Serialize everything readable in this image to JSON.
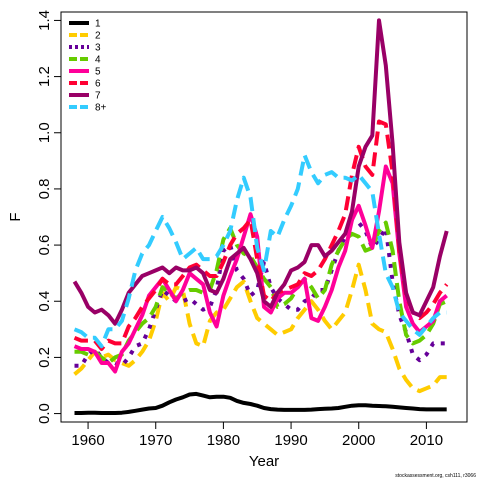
{
  "chart_data": {
    "type": "line",
    "title": "",
    "xlabel": "Year",
    "ylabel": "F",
    "credit": "stockassessment.org, csh111, r3066",
    "xlim": [
      1956,
      2016
    ],
    "ylim": [
      -0.03,
      1.43
    ],
    "x_ticks": [
      1960,
      1970,
      1980,
      1990,
      2000,
      2010
    ],
    "x_tick_labels": [
      "1960",
      "1970",
      "1980",
      "1990",
      "2000",
      "2010"
    ],
    "y_ticks": [
      0,
      0.2,
      0.4,
      0.6,
      0.8,
      1.0,
      1.2,
      1.4
    ],
    "y_tick_labels": [
      "0.0",
      "0.2",
      "0.4",
      "0.6",
      "0.8",
      "1.0",
      "1.2",
      "1.4"
    ],
    "grid": false,
    "legend_position": "top-left",
    "x": [
      1958,
      1959,
      1960,
      1961,
      1962,
      1963,
      1964,
      1965,
      1966,
      1967,
      1968,
      1969,
      1970,
      1971,
      1972,
      1973,
      1974,
      1975,
      1976,
      1977,
      1978,
      1979,
      1980,
      1981,
      1982,
      1983,
      1984,
      1985,
      1986,
      1987,
      1988,
      1989,
      1990,
      1991,
      1992,
      1993,
      1994,
      1995,
      1996,
      1997,
      1998,
      1999,
      2000,
      2001,
      2002,
      2003,
      2004,
      2005,
      2006,
      2007,
      2008,
      2009,
      2010,
      2011,
      2012,
      2013
    ],
    "series": [
      {
        "name": "1",
        "color": "#000000",
        "dash": "solid",
        "values": [
          0.002,
          0.002,
          0.003,
          0.003,
          0.002,
          0.002,
          0.002,
          0.003,
          0.006,
          0.01,
          0.014,
          0.018,
          0.02,
          0.028,
          0.04,
          0.05,
          0.058,
          0.068,
          0.07,
          0.064,
          0.058,
          0.06,
          0.06,
          0.056,
          0.045,
          0.038,
          0.034,
          0.028,
          0.02,
          0.016,
          0.014,
          0.013,
          0.013,
          0.013,
          0.013,
          0.014,
          0.016,
          0.017,
          0.018,
          0.02,
          0.024,
          0.028,
          0.03,
          0.03,
          0.028,
          0.027,
          0.026,
          0.024,
          0.022,
          0.02,
          0.018,
          0.016,
          0.015,
          0.015,
          0.015,
          0.015
        ]
      },
      {
        "name": "2",
        "color": "#FFCC00",
        "dash": "dashed",
        "values": [
          0.14,
          0.16,
          0.19,
          0.22,
          0.2,
          0.21,
          0.19,
          0.18,
          0.17,
          0.19,
          0.22,
          0.26,
          0.33,
          0.43,
          0.4,
          0.45,
          0.44,
          0.32,
          0.25,
          0.24,
          0.33,
          0.36,
          0.37,
          0.41,
          0.45,
          0.47,
          0.4,
          0.34,
          0.32,
          0.3,
          0.28,
          0.29,
          0.3,
          0.34,
          0.37,
          0.4,
          0.37,
          0.33,
          0.3,
          0.33,
          0.36,
          0.44,
          0.53,
          0.44,
          0.32,
          0.3,
          0.29,
          0.23,
          0.16,
          0.12,
          0.09,
          0.08,
          0.09,
          0.1,
          0.13,
          0.13
        ]
      },
      {
        "name": "3",
        "color": "#660099",
        "dash": "dotted",
        "values": [
          0.17,
          0.17,
          0.21,
          0.23,
          0.2,
          0.18,
          0.18,
          0.17,
          0.2,
          0.24,
          0.25,
          0.3,
          0.37,
          0.44,
          0.42,
          0.4,
          0.4,
          0.41,
          0.39,
          0.37,
          0.38,
          0.44,
          0.58,
          0.6,
          0.51,
          0.48,
          0.42,
          0.44,
          0.54,
          0.45,
          0.41,
          0.39,
          0.37,
          0.37,
          0.4,
          0.41,
          0.44,
          0.44,
          0.51,
          0.58,
          0.63,
          0.69,
          0.68,
          0.65,
          0.59,
          0.62,
          0.66,
          0.47,
          0.35,
          0.29,
          0.21,
          0.19,
          0.21,
          0.25,
          0.25,
          0.25
        ]
      },
      {
        "name": "4",
        "color": "#66CC00",
        "dash": "dashed",
        "values": [
          0.22,
          0.22,
          0.21,
          0.22,
          0.2,
          0.18,
          0.2,
          0.21,
          0.26,
          0.29,
          0.32,
          0.34,
          0.38,
          0.45,
          0.43,
          0.41,
          0.43,
          0.44,
          0.44,
          0.43,
          0.44,
          0.51,
          0.62,
          0.66,
          0.6,
          0.57,
          0.56,
          0.52,
          0.48,
          0.45,
          0.38,
          0.39,
          0.41,
          0.45,
          0.48,
          0.45,
          0.41,
          0.44,
          0.53,
          0.58,
          0.62,
          0.64,
          0.63,
          0.58,
          0.59,
          0.65,
          0.68,
          0.58,
          0.4,
          0.28,
          0.25,
          0.26,
          0.28,
          0.32,
          0.39,
          0.4
        ]
      },
      {
        "name": "5",
        "color": "#FF0099",
        "dash": "solid",
        "values": [
          0.24,
          0.23,
          0.23,
          0.22,
          0.18,
          0.18,
          0.15,
          0.22,
          0.25,
          0.3,
          0.35,
          0.42,
          0.45,
          0.48,
          0.44,
          0.4,
          0.44,
          0.5,
          0.48,
          0.46,
          0.36,
          0.31,
          0.42,
          0.49,
          0.55,
          0.63,
          0.71,
          0.63,
          0.38,
          0.36,
          0.41,
          0.43,
          0.43,
          0.45,
          0.48,
          0.34,
          0.33,
          0.38,
          0.44,
          0.52,
          0.58,
          0.69,
          0.74,
          0.67,
          0.59,
          0.72,
          0.88,
          0.82,
          0.57,
          0.38,
          0.32,
          0.29,
          0.31,
          0.33,
          0.4,
          0.42
        ]
      },
      {
        "name": "6",
        "color": "#FF0033",
        "dash": "dashed",
        "values": [
          0.27,
          0.26,
          0.26,
          0.26,
          0.23,
          0.26,
          0.25,
          0.25,
          0.31,
          0.34,
          0.38,
          0.41,
          0.44,
          0.48,
          0.46,
          0.46,
          0.49,
          0.52,
          0.53,
          0.51,
          0.49,
          0.49,
          0.54,
          0.6,
          0.64,
          0.66,
          0.69,
          0.55,
          0.42,
          0.4,
          0.43,
          0.44,
          0.45,
          0.46,
          0.5,
          0.49,
          0.51,
          0.55,
          0.6,
          0.65,
          0.71,
          0.85,
          0.95,
          0.88,
          0.85,
          1.04,
          1.03,
          0.86,
          0.58,
          0.42,
          0.36,
          0.34,
          0.36,
          0.39,
          0.43,
          0.46
        ]
      },
      {
        "name": "7",
        "color": "#990066",
        "dash": "solid",
        "values": [
          0.47,
          0.43,
          0.38,
          0.36,
          0.37,
          0.35,
          0.32,
          0.37,
          0.43,
          0.46,
          0.49,
          0.5,
          0.51,
          0.52,
          0.5,
          0.52,
          0.51,
          0.51,
          0.52,
          0.5,
          0.44,
          0.43,
          0.48,
          0.55,
          0.57,
          0.59,
          0.55,
          0.5,
          0.4,
          0.38,
          0.43,
          0.46,
          0.51,
          0.52,
          0.54,
          0.6,
          0.6,
          0.56,
          0.58,
          0.61,
          0.64,
          0.72,
          0.88,
          0.95,
          0.99,
          1.4,
          1.24,
          0.96,
          0.61,
          0.43,
          0.36,
          0.35,
          0.4,
          0.45,
          0.56,
          0.65
        ]
      },
      {
        "name": "8+",
        "color": "#33CCFF",
        "dash": "dashed",
        "values": [
          0.3,
          0.29,
          0.27,
          0.27,
          0.24,
          0.3,
          0.3,
          0.33,
          0.41,
          0.51,
          0.57,
          0.6,
          0.65,
          0.7,
          0.66,
          0.61,
          0.55,
          0.57,
          0.59,
          0.55,
          0.55,
          0.56,
          0.6,
          0.65,
          0.76,
          0.84,
          0.77,
          0.59,
          0.51,
          0.65,
          0.63,
          0.69,
          0.74,
          0.8,
          0.92,
          0.86,
          0.82,
          0.85,
          0.86,
          0.84,
          0.84,
          0.83,
          0.85,
          0.82,
          0.79,
          0.64,
          0.5,
          0.45,
          0.36,
          0.33,
          0.3,
          0.28,
          0.31,
          0.34,
          0.36,
          0.36
        ]
      }
    ]
  }
}
